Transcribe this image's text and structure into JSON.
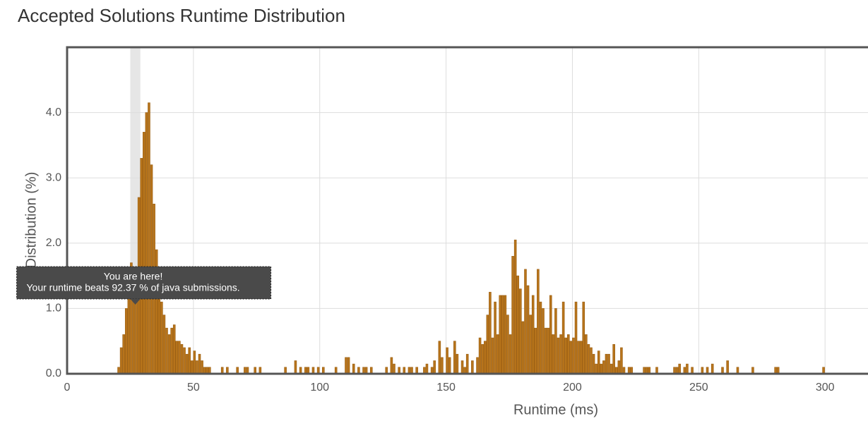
{
  "chart_data": {
    "type": "bar",
    "title": "Accepted Solutions Runtime Distribution",
    "xlabel": "Runtime (ms)",
    "ylabel": "Distribution (%)",
    "color": "#b7741b",
    "edge_color": "#9a5e12",
    "grid": true,
    "highlight": {
      "from": 25,
      "to": 29
    },
    "tooltip": {
      "title": "You are here!",
      "text": "Your runtime beats 92.37 % of java submissions."
    },
    "xlim": [
      0,
      317
    ],
    "ylim": [
      0,
      5
    ],
    "xticks": [
      0,
      50,
      100,
      150,
      200,
      250,
      300
    ],
    "yticks": [
      {
        "value": 0,
        "label": "0.0"
      },
      {
        "value": 1,
        "label": "1.0"
      },
      {
        "value": 2,
        "label": "2.0"
      },
      {
        "value": 3,
        "label": "3.0"
      },
      {
        "value": 4,
        "label": "4.0"
      }
    ],
    "x": [
      20,
      21,
      22,
      23,
      24,
      25,
      26,
      27,
      28,
      29,
      30,
      31,
      32,
      33,
      34,
      35,
      36,
      37,
      38,
      39,
      40,
      41,
      42,
      43,
      44,
      45,
      46,
      47,
      48,
      49,
      50,
      51,
      52,
      53,
      54,
      55,
      56,
      61,
      63,
      67,
      70,
      71,
      74,
      76,
      86,
      90,
      92,
      94,
      95,
      97,
      99,
      101,
      106,
      110,
      111,
      113,
      115,
      117,
      118,
      120,
      126,
      128,
      129,
      131,
      133,
      135,
      136,
      138,
      141,
      142,
      144,
      145,
      147,
      148,
      150,
      151,
      153,
      154,
      156,
      157,
      158,
      160,
      162,
      163,
      164,
      165,
      166,
      167,
      168,
      169,
      170,
      171,
      172,
      173,
      174,
      175,
      176,
      177,
      178,
      179,
      180,
      181,
      182,
      183,
      184,
      185,
      186,
      187,
      188,
      189,
      190,
      191,
      192,
      193,
      194,
      195,
      196,
      197,
      198,
      199,
      200,
      201,
      202,
      203,
      204,
      205,
      206,
      207,
      208,
      209,
      210,
      211,
      212,
      213,
      214,
      215,
      216,
      217,
      218,
      219,
      220,
      222,
      223,
      228,
      229,
      230,
      233,
      240,
      241,
      242,
      244,
      245,
      247,
      251,
      253,
      255,
      259,
      261,
      265,
      271,
      280,
      281,
      299
    ],
    "values": [
      0.1,
      0.4,
      0.6,
      1.0,
      1.5,
      1.7,
      1.3,
      1.5,
      2.7,
      3.3,
      3.7,
      4.0,
      4.15,
      3.2,
      2.6,
      1.9,
      1.3,
      1.1,
      0.9,
      0.7,
      0.6,
      0.7,
      0.75,
      0.5,
      0.5,
      0.45,
      0.4,
      0.3,
      0.4,
      0.2,
      0.35,
      0.2,
      0.3,
      0.2,
      0.1,
      0.1,
      0.1,
      0.1,
      0.1,
      0.1,
      0.1,
      0.1,
      0.1,
      0.1,
      0.1,
      0.2,
      0.1,
      0.1,
      0.1,
      0.1,
      0.1,
      0.1,
      0.1,
      0.25,
      0.25,
      0.15,
      0.1,
      0.1,
      0.1,
      0.1,
      0.1,
      0.25,
      0.15,
      0.1,
      0.1,
      0.1,
      0.1,
      0.1,
      0.1,
      0.15,
      0.1,
      0.2,
      0.5,
      0.25,
      0.4,
      0.25,
      0.5,
      0.3,
      0.2,
      0.1,
      0.3,
      0.2,
      0.25,
      0.55,
      0.45,
      0.5,
      0.9,
      1.25,
      0.55,
      1.1,
      0.6,
      1.2,
      1.2,
      1.2,
      0.9,
      0.6,
      1.8,
      2.05,
      1.5,
      1.3,
      0.8,
      1.6,
      1.35,
      0.9,
      1.2,
      0.7,
      1.6,
      1.1,
      1.0,
      0.7,
      0.7,
      1.2,
      0.6,
      1.0,
      0.55,
      0.6,
      1.1,
      0.55,
      0.6,
      0.5,
      0.55,
      1.1,
      0.5,
      0.5,
      1.1,
      0.6,
      0.45,
      0.4,
      0.3,
      0.15,
      0.35,
      0.15,
      0.2,
      0.3,
      0.3,
      0.15,
      0.45,
      0.1,
      0.2,
      0.4,
      0.1,
      0.1,
      0.1,
      0.1,
      0.1,
      0.1,
      0.1,
      0.1,
      0.1,
      0.15,
      0.1,
      0.15,
      0.1,
      0.1,
      0.1,
      0.15,
      0.1,
      0.2,
      0.1,
      0.1,
      0.1,
      0.1,
      0.1
    ]
  }
}
